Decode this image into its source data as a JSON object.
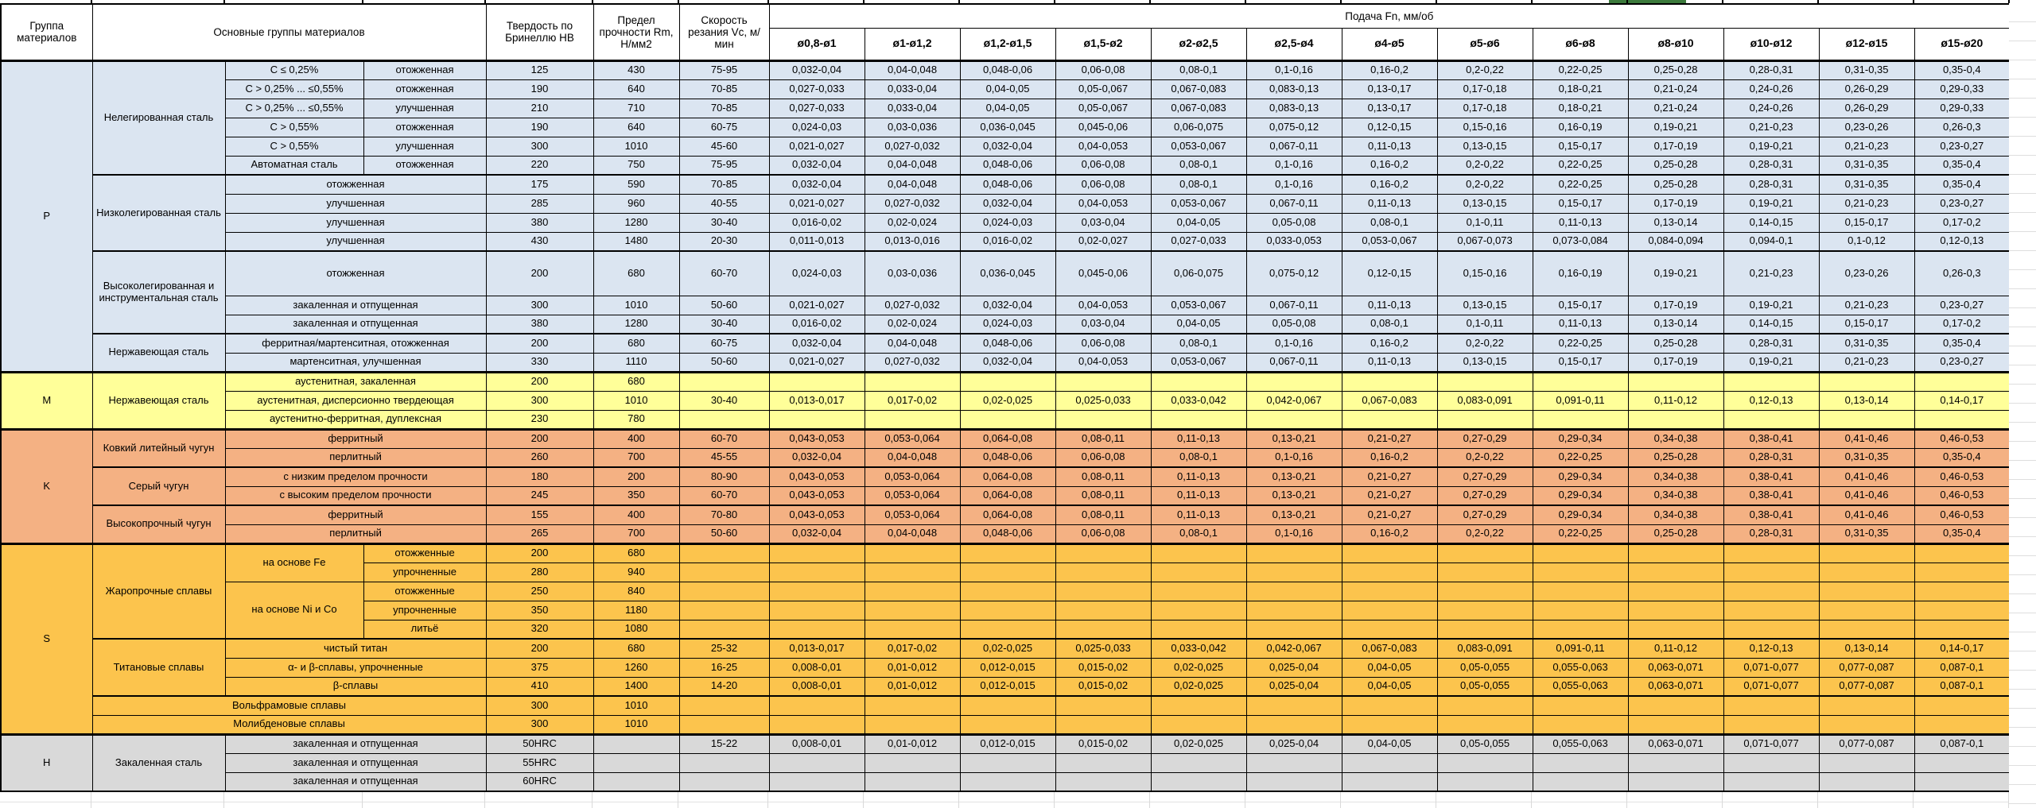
{
  "header": {
    "col_group": "Группа материалов",
    "col_main": "Основные группы материалов",
    "col_hb": "Твердость по Бринеллю НВ",
    "col_rm": "Предел прочности Rm, Н/мм2",
    "col_vc": "Скорость резания Vc, м/мин",
    "col_feed": "Подача Fn, мм/об",
    "diameters": [
      "ø0,8-ø1",
      "ø1-ø1,2",
      "ø1,2-ø1,5",
      "ø1,5-ø2",
      "ø2-ø2,5",
      "ø2,5-ø4",
      "ø4-ø5",
      "ø5-ø6",
      "ø6-ø8",
      "ø8-ø10",
      "ø10-ø12",
      "ø12-ø15",
      "ø15-ø20"
    ]
  },
  "colors": {
    "section_p": "#dbe5f1",
    "section_m": "#ffff99",
    "section_k": "#f4b183",
    "section_s": "#fcc44d",
    "section_h": "#d9d9d9",
    "grid": "#000000",
    "selection_green": "#3c7a3c"
  },
  "feed_patterns": {
    "A": [
      "0,032-0,04",
      "0,04-0,048",
      "0,048-0,06",
      "0,06-0,08",
      "0,08-0,1",
      "0,1-0,16",
      "0,16-0,2",
      "0,2-0,22",
      "0,22-0,25",
      "0,25-0,28",
      "0,28-0,31",
      "0,31-0,35",
      "0,35-0,4"
    ],
    "B": [
      "0,027-0,033",
      "0,033-0,04",
      "0,04-0,05",
      "0,05-0,067",
      "0,067-0,083",
      "0,083-0,13",
      "0,13-0,17",
      "0,17-0,18",
      "0,18-0,21",
      "0,21-0,24",
      "0,24-0,26",
      "0,26-0,29",
      "0,29-0,33"
    ],
    "C": [
      "0,024-0,03",
      "0,03-0,036",
      "0,036-0,045",
      "0,045-0,06",
      "0,06-0,075",
      "0,075-0,12",
      "0,12-0,15",
      "0,15-0,16",
      "0,16-0,19",
      "0,19-0,21",
      "0,21-0,23",
      "0,23-0,26",
      "0,26-0,3"
    ],
    "D": [
      "0,021-0,027",
      "0,027-0,032",
      "0,032-0,04",
      "0,04-0,053",
      "0,053-0,067",
      "0,067-0,11",
      "0,11-0,13",
      "0,13-0,15",
      "0,15-0,17",
      "0,17-0,19",
      "0,19-0,21",
      "0,21-0,23",
      "0,23-0,27"
    ],
    "E": [
      "0,016-0,02",
      "0,02-0,024",
      "0,024-0,03",
      "0,03-0,04",
      "0,04-0,05",
      "0,05-0,08",
      "0,08-0,1",
      "0,1-0,11",
      "0,11-0,13",
      "0,13-0,14",
      "0,14-0,15",
      "0,15-0,17",
      "0,17-0,2"
    ],
    "F": [
      "0,011-0,013",
      "0,013-0,016",
      "0,016-0,02",
      "0,02-0,027",
      "0,027-0,033",
      "0,033-0,053",
      "0,053-0,067",
      "0,067-0,073",
      "0,073-0,084",
      "0,084-0,094",
      "0,094-0,1",
      "0,1-0,12",
      "0,12-0,13"
    ],
    "G": [
      "0,013-0,017",
      "0,017-0,02",
      "0,02-0,025",
      "0,025-0,033",
      "0,033-0,042",
      "0,042-0,067",
      "0,067-0,083",
      "0,083-0,091",
      "0,091-0,11",
      "0,11-0,12",
      "0,12-0,13",
      "0,13-0,14",
      "0,14-0,17"
    ],
    "H": [
      "0,043-0,053",
      "0,053-0,064",
      "0,064-0,08",
      "0,08-0,11",
      "0,11-0,13",
      "0,13-0,21",
      "0,21-0,27",
      "0,27-0,29",
      "0,29-0,34",
      "0,34-0,38",
      "0,38-0,41",
      "0,41-0,46",
      "0,46-0,53"
    ],
    "I": [
      "0,008-0,01",
      "0,01-0,012",
      "0,012-0,015",
      "0,015-0,02",
      "0,02-0,025",
      "0,025-0,04",
      "0,04-0,05",
      "0,05-0,055",
      "0,055-0,063",
      "0,063-0,071",
      "0,071-0,077",
      "0,077-0,087",
      "0,087-0,1"
    ]
  },
  "sections": [
    {
      "letter": "P",
      "color": "#dbe5f1",
      "rows": [
        {
          "lead": [
            {
              "t": "Нелегированная сталь",
              "rs": 6
            },
            {
              "t": "С ≤ 0,25%"
            },
            {
              "t": "отожженная"
            }
          ],
          "hb": "125",
          "rm": "430",
          "vc": "75-95",
          "feeds": "A"
        },
        {
          "lead": [
            {
              "t": "С > 0,25% ... ≤0,55%"
            },
            {
              "t": "отожженная"
            }
          ],
          "hb": "190",
          "rm": "640",
          "vc": "70-85",
          "feeds": "B"
        },
        {
          "lead": [
            {
              "t": "С > 0,25% ... ≤0,55%"
            },
            {
              "t": "улучшенная"
            }
          ],
          "hb": "210",
          "rm": "710",
          "vc": "70-85",
          "feeds": "B"
        },
        {
          "lead": [
            {
              "t": "С > 0,55%"
            },
            {
              "t": "отожженная"
            }
          ],
          "hb": "190",
          "rm": "640",
          "vc": "60-75",
          "feeds": "C"
        },
        {
          "lead": [
            {
              "t": "С > 0,55%"
            },
            {
              "t": "улучшенная"
            }
          ],
          "hb": "300",
          "rm": "1010",
          "vc": "45-60",
          "feeds": "D"
        },
        {
          "lead": [
            {
              "t": "Автоматная сталь"
            },
            {
              "t": "отожженная"
            }
          ],
          "hb": "220",
          "rm": "750",
          "vc": "75-95",
          "feeds": "A"
        },
        {
          "fam": true,
          "lead": [
            {
              "t": "Низколегированная сталь",
              "rs": 4
            },
            {
              "t": "отожженная",
              "cs": 2
            }
          ],
          "hb": "175",
          "rm": "590",
          "vc": "70-85",
          "feeds": "A"
        },
        {
          "lead": [
            {
              "t": "улучшенная",
              "cs": 2
            }
          ],
          "hb": "285",
          "rm": "960",
          "vc": "40-55",
          "feeds": "D"
        },
        {
          "lead": [
            {
              "t": "улучшенная",
              "cs": 2
            }
          ],
          "hb": "380",
          "rm": "1280",
          "vc": "30-40",
          "feeds": "E"
        },
        {
          "lead": [
            {
              "t": "улучшенная",
              "cs": 2
            }
          ],
          "hb": "430",
          "rm": "1480",
          "vc": "20-30",
          "feeds": "F"
        },
        {
          "fam": true,
          "tall": true,
          "lead": [
            {
              "t": "Высоколегированная и инструментальная сталь",
              "rs": 3
            },
            {
              "t": "отожженная",
              "cs": 2
            }
          ],
          "hb": "200",
          "rm": "680",
          "vc": "60-70",
          "feeds": "C"
        },
        {
          "lead": [
            {
              "t": "закаленная и отпущенная",
              "cs": 2
            }
          ],
          "hb": "300",
          "rm": "1010",
          "vc": "50-60",
          "feeds": "D"
        },
        {
          "lead": [
            {
              "t": "закаленная и отпущенная",
              "cs": 2
            }
          ],
          "hb": "380",
          "rm": "1280",
          "vc": "30-40",
          "feeds": "E"
        },
        {
          "fam": true,
          "lead": [
            {
              "t": "Нержавеющая сталь",
              "rs": 2
            },
            {
              "t": "ферритная/мартенситная, отожженная",
              "cs": 2
            }
          ],
          "hb": "200",
          "rm": "680",
          "vc": "60-75",
          "feeds": "A"
        },
        {
          "lead": [
            {
              "t": "мартенситная, улучшенная",
              "cs": 2
            }
          ],
          "hb": "330",
          "rm": "1110",
          "vc": "50-60",
          "feeds": "D"
        }
      ]
    },
    {
      "letter": "M",
      "color": "#ffff99",
      "rows": [
        {
          "lead": [
            {
              "t": "Нержавеющая сталь",
              "rs": 3
            },
            {
              "t": "аустенитная, закаленная",
              "cs": 2
            }
          ],
          "hb": "200",
          "rm": "680",
          "vc": "",
          "feeds": null
        },
        {
          "lead": [
            {
              "t": "аустенитная, дисперсионно твердеющая",
              "cs": 2
            }
          ],
          "hb": "300",
          "rm": "1010",
          "vc": "30-40",
          "feeds": "G"
        },
        {
          "lead": [
            {
              "t": "аустенитно-ферритная, дуплексная",
              "cs": 2
            }
          ],
          "hb": "230",
          "rm": "780",
          "vc": "",
          "feeds": null
        }
      ]
    },
    {
      "letter": "K",
      "color": "#f4b183",
      "rows": [
        {
          "lead": [
            {
              "t": "Ковкий литейный чугун",
              "rs": 2
            },
            {
              "t": "ферритный",
              "cs": 2
            }
          ],
          "hb": "200",
          "rm": "400",
          "vc": "60-70",
          "feeds": "H"
        },
        {
          "lead": [
            {
              "t": "перлитный",
              "cs": 2
            }
          ],
          "hb": "260",
          "rm": "700",
          "vc": "45-55",
          "feeds": "A"
        },
        {
          "fam": true,
          "lead": [
            {
              "t": "Серый чугун",
              "rs": 2
            },
            {
              "t": "с низким пределом прочности",
              "cs": 2
            }
          ],
          "hb": "180",
          "rm": "200",
          "vc": "80-90",
          "feeds": "H"
        },
        {
          "lead": [
            {
              "t": "с высоким пределом прочности",
              "cs": 2
            }
          ],
          "hb": "245",
          "rm": "350",
          "vc": "60-70",
          "feeds": "H"
        },
        {
          "fam": true,
          "lead": [
            {
              "t": "Высокопрочный чугун",
              "rs": 2
            },
            {
              "t": "ферритный",
              "cs": 2
            }
          ],
          "hb": "155",
          "rm": "400",
          "vc": "70-80",
          "feeds": "H"
        },
        {
          "lead": [
            {
              "t": "перлитный",
              "cs": 2
            }
          ],
          "hb": "265",
          "rm": "700",
          "vc": "50-60",
          "feeds": "A"
        }
      ]
    },
    {
      "letter": "S",
      "color": "#fcc44d",
      "rows": [
        {
          "lead": [
            {
              "t": "Жаропрочные сплавы",
              "rs": 5
            },
            {
              "t": "на основе Fe",
              "rs": 2
            },
            {
              "t": "отожженные"
            }
          ],
          "hb": "200",
          "rm": "680",
          "vc": "",
          "feeds": null
        },
        {
          "lead": [
            {
              "t": "упрочненные"
            }
          ],
          "hb": "280",
          "rm": "940",
          "vc": "",
          "feeds": null
        },
        {
          "lead": [
            {
              "t": "на основе Ni и Co",
              "rs": 3
            },
            {
              "t": "отожженные"
            }
          ],
          "hb": "250",
          "rm": "840",
          "vc": "",
          "feeds": null
        },
        {
          "lead": [
            {
              "t": "упрочненные"
            }
          ],
          "hb": "350",
          "rm": "1180",
          "vc": "",
          "feeds": null
        },
        {
          "lead": [
            {
              "t": "литьё"
            }
          ],
          "hb": "320",
          "rm": "1080",
          "vc": "",
          "feeds": null
        },
        {
          "fam": true,
          "lead": [
            {
              "t": "чистый титан",
              "cs": 2
            },
            {
              "t": "Титановые сплавы",
              "rs": 3,
              "family": true
            }
          ],
          "hb": "200",
          "rm": "680",
          "vc": "25-32",
          "feeds": "G"
        },
        {
          "lead": [
            {
              "t": "α- и β-сплавы, упрочненные",
              "cs": 2
            }
          ],
          "hb": "375",
          "rm": "1260",
          "vc": "16-25",
          "feeds": "I"
        },
        {
          "lead": [
            {
              "t": "β-сплавы",
              "cs": 2
            }
          ],
          "hb": "410",
          "rm": "1400",
          "vc": "14-20",
          "feeds": "I"
        },
        {
          "fam": true,
          "lead": [
            {
              "t": "Вольфрамовые сплавы",
              "cs": 3
            }
          ],
          "hb": "300",
          "rm": "1010",
          "vc": "",
          "feeds": null
        },
        {
          "lead": [
            {
              "t": "Молибденовые сплавы",
              "cs": 3
            }
          ],
          "hb": "300",
          "rm": "1010",
          "vc": "",
          "feeds": null
        }
      ]
    },
    {
      "letter": "H",
      "color": "#d9d9d9",
      "rows": [
        {
          "lead": [
            {
              "t": "Закаленная сталь",
              "rs": 3
            },
            {
              "t": "закаленная и отпущенная",
              "cs": 2
            }
          ],
          "hb": "50HRC",
          "rm": "",
          "vc": "15-22",
          "feeds": "I"
        },
        {
          "lead": [
            {
              "t": "закаленная и отпущенная",
              "cs": 2
            }
          ],
          "hb": "55HRC",
          "rm": "",
          "vc": "",
          "feeds": null
        },
        {
          "lead": [
            {
              "t": "закаленная и отпущенная",
              "cs": 2
            }
          ],
          "hb": "60HRC",
          "rm": "",
          "vc": "",
          "feeds": null
        }
      ]
    }
  ]
}
